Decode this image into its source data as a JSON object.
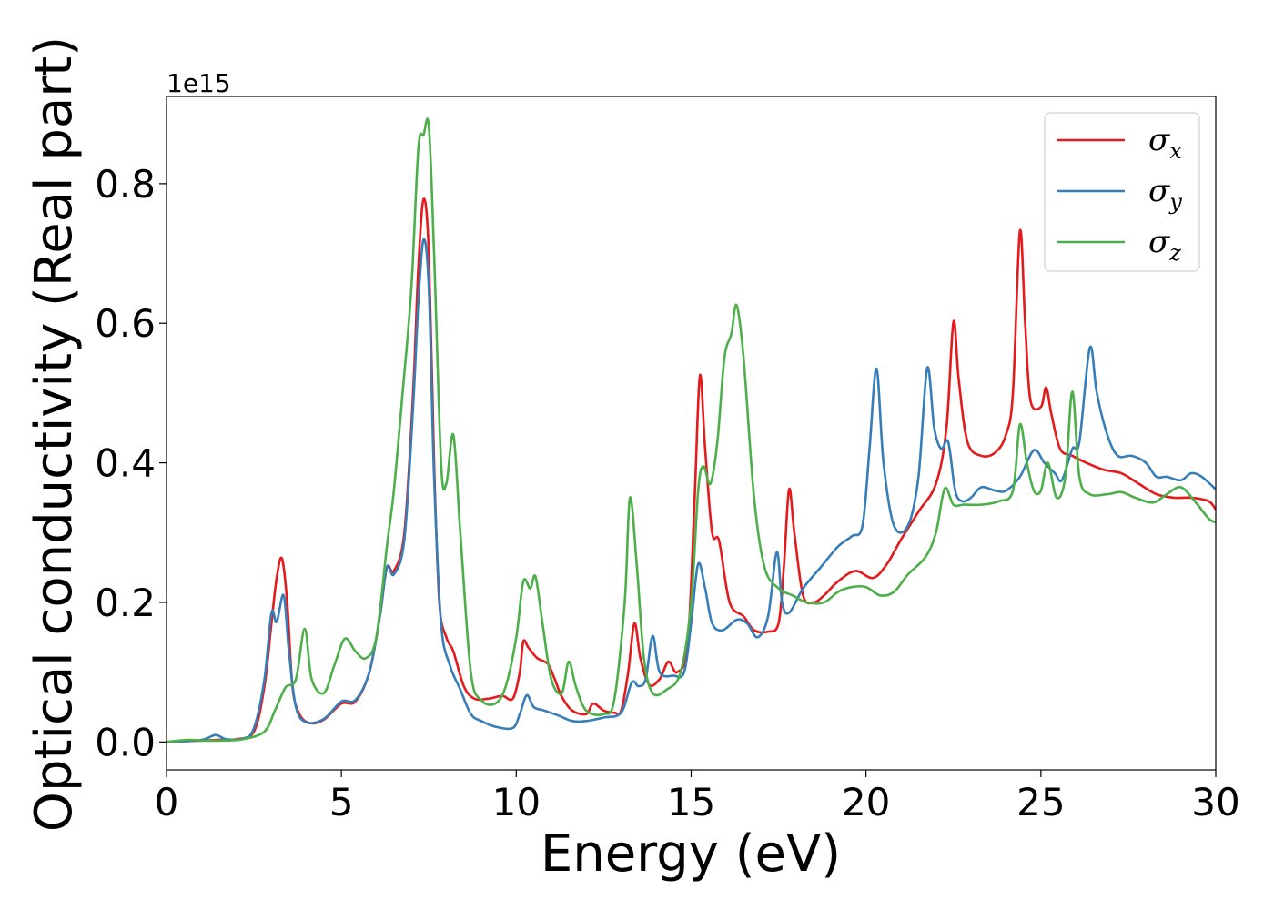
{
  "chart_data": {
    "type": "line",
    "title": "",
    "xlabel": "Energy (eV)",
    "ylabel": "Optical conductivity (Real part)",
    "y_offset_text": "1e15",
    "xlim": [
      0,
      30
    ],
    "ylim": [
      -0.04,
      0.925
    ],
    "xticks": [
      0,
      5,
      10,
      15,
      20,
      25,
      30
    ],
    "xtick_labels": [
      "0",
      "5",
      "10",
      "15",
      "20",
      "25",
      "30"
    ],
    "yticks": [
      0.0,
      0.2,
      0.4,
      0.6,
      0.8
    ],
    "ytick_labels": [
      "0.0",
      "0.2",
      "0.4",
      "0.6",
      "0.8"
    ],
    "grid": false,
    "legend_position": "top-right",
    "series": [
      {
        "name": "σx",
        "symbol": "σ",
        "subscript": "x",
        "color": "#e41a1c",
        "points": [
          [
            0,
            0
          ],
          [
            1,
            0.002
          ],
          [
            1.5,
            0.003
          ],
          [
            2,
            0.004
          ],
          [
            2.5,
            0.015
          ],
          [
            2.8,
            0.08
          ],
          [
            3.0,
            0.17
          ],
          [
            3.15,
            0.235
          ],
          [
            3.3,
            0.263
          ],
          [
            3.45,
            0.2
          ],
          [
            3.6,
            0.08
          ],
          [
            3.8,
            0.04
          ],
          [
            4.1,
            0.027
          ],
          [
            4.5,
            0.032
          ],
          [
            5.0,
            0.055
          ],
          [
            5.4,
            0.058
          ],
          [
            5.8,
            0.1
          ],
          [
            6.1,
            0.18
          ],
          [
            6.3,
            0.25
          ],
          [
            6.5,
            0.245
          ],
          [
            6.8,
            0.3
          ],
          [
            7.05,
            0.5
          ],
          [
            7.2,
            0.68
          ],
          [
            7.35,
            0.778
          ],
          [
            7.5,
            0.7
          ],
          [
            7.65,
            0.4
          ],
          [
            7.8,
            0.2
          ],
          [
            8.0,
            0.15
          ],
          [
            8.2,
            0.13
          ],
          [
            8.5,
            0.08
          ],
          [
            8.8,
            0.062
          ],
          [
            9.2,
            0.062
          ],
          [
            9.6,
            0.066
          ],
          [
            9.9,
            0.062
          ],
          [
            10.1,
            0.1
          ],
          [
            10.2,
            0.144
          ],
          [
            10.35,
            0.135
          ],
          [
            10.6,
            0.12
          ],
          [
            10.9,
            0.112
          ],
          [
            11.1,
            0.09
          ],
          [
            11.3,
            0.065
          ],
          [
            11.6,
            0.045
          ],
          [
            12.0,
            0.04
          ],
          [
            12.2,
            0.055
          ],
          [
            12.5,
            0.045
          ],
          [
            12.8,
            0.042
          ],
          [
            13.0,
            0.045
          ],
          [
            13.2,
            0.1
          ],
          [
            13.38,
            0.17
          ],
          [
            13.55,
            0.12
          ],
          [
            13.8,
            0.082
          ],
          [
            14.1,
            0.09
          ],
          [
            14.35,
            0.115
          ],
          [
            14.6,
            0.1
          ],
          [
            14.9,
            0.14
          ],
          [
            15.1,
            0.35
          ],
          [
            15.25,
            0.525
          ],
          [
            15.4,
            0.42
          ],
          [
            15.6,
            0.3
          ],
          [
            15.8,
            0.288
          ],
          [
            16.1,
            0.2
          ],
          [
            16.5,
            0.18
          ],
          [
            16.8,
            0.16
          ],
          [
            17.2,
            0.158
          ],
          [
            17.5,
            0.17
          ],
          [
            17.65,
            0.25
          ],
          [
            17.8,
            0.362
          ],
          [
            17.95,
            0.3
          ],
          [
            18.2,
            0.21
          ],
          [
            18.5,
            0.2
          ],
          [
            18.8,
            0.21
          ],
          [
            19.2,
            0.23
          ],
          [
            19.7,
            0.245
          ],
          [
            20.2,
            0.235
          ],
          [
            20.6,
            0.255
          ],
          [
            21.0,
            0.29
          ],
          [
            21.5,
            0.33
          ],
          [
            22.0,
            0.37
          ],
          [
            22.3,
            0.45
          ],
          [
            22.5,
            0.602
          ],
          [
            22.65,
            0.52
          ],
          [
            22.9,
            0.43
          ],
          [
            23.3,
            0.41
          ],
          [
            23.7,
            0.415
          ],
          [
            24.0,
            0.44
          ],
          [
            24.2,
            0.5
          ],
          [
            24.4,
            0.732
          ],
          [
            24.55,
            0.6
          ],
          [
            24.7,
            0.49
          ],
          [
            25.0,
            0.48
          ],
          [
            25.15,
            0.508
          ],
          [
            25.3,
            0.47
          ],
          [
            25.55,
            0.42
          ],
          [
            25.9,
            0.41
          ],
          [
            26.3,
            0.4
          ],
          [
            26.8,
            0.39
          ],
          [
            27.3,
            0.385
          ],
          [
            27.8,
            0.37
          ],
          [
            28.3,
            0.355
          ],
          [
            28.8,
            0.35
          ],
          [
            29.3,
            0.35
          ],
          [
            29.8,
            0.345
          ],
          [
            30,
            0.333
          ]
        ]
      },
      {
        "name": "σy",
        "symbol": "σ",
        "subscript": "y",
        "color": "#377eb8",
        "points": [
          [
            0,
            0
          ],
          [
            1.0,
            0.003
          ],
          [
            1.4,
            0.01
          ],
          [
            1.7,
            0.004
          ],
          [
            2.2,
            0.005
          ],
          [
            2.5,
            0.02
          ],
          [
            2.8,
            0.09
          ],
          [
            3.0,
            0.185
          ],
          [
            3.15,
            0.172
          ],
          [
            3.35,
            0.21
          ],
          [
            3.5,
            0.13
          ],
          [
            3.7,
            0.05
          ],
          [
            4.0,
            0.028
          ],
          [
            4.5,
            0.033
          ],
          [
            5.0,
            0.058
          ],
          [
            5.4,
            0.06
          ],
          [
            5.8,
            0.1
          ],
          [
            6.1,
            0.18
          ],
          [
            6.3,
            0.25
          ],
          [
            6.5,
            0.24
          ],
          [
            6.8,
            0.29
          ],
          [
            7.05,
            0.48
          ],
          [
            7.2,
            0.63
          ],
          [
            7.35,
            0.72
          ],
          [
            7.5,
            0.65
          ],
          [
            7.65,
            0.38
          ],
          [
            7.85,
            0.17
          ],
          [
            8.1,
            0.11
          ],
          [
            8.4,
            0.075
          ],
          [
            8.7,
            0.04
          ],
          [
            9.0,
            0.03
          ],
          [
            9.4,
            0.022
          ],
          [
            9.9,
            0.02
          ],
          [
            10.1,
            0.04
          ],
          [
            10.3,
            0.067
          ],
          [
            10.5,
            0.05
          ],
          [
            10.8,
            0.045
          ],
          [
            11.2,
            0.038
          ],
          [
            11.6,
            0.03
          ],
          [
            12.0,
            0.03
          ],
          [
            12.5,
            0.035
          ],
          [
            13.0,
            0.042
          ],
          [
            13.3,
            0.085
          ],
          [
            13.5,
            0.08
          ],
          [
            13.7,
            0.09
          ],
          [
            13.9,
            0.152
          ],
          [
            14.1,
            0.1
          ],
          [
            14.5,
            0.095
          ],
          [
            14.8,
            0.1
          ],
          [
            15.0,
            0.17
          ],
          [
            15.2,
            0.255
          ],
          [
            15.4,
            0.22
          ],
          [
            15.6,
            0.17
          ],
          [
            15.9,
            0.16
          ],
          [
            16.3,
            0.175
          ],
          [
            16.6,
            0.17
          ],
          [
            16.9,
            0.15
          ],
          [
            17.2,
            0.18
          ],
          [
            17.45,
            0.272
          ],
          [
            17.6,
            0.2
          ],
          [
            17.8,
            0.185
          ],
          [
            18.2,
            0.22
          ],
          [
            18.7,
            0.25
          ],
          [
            19.2,
            0.28
          ],
          [
            19.6,
            0.295
          ],
          [
            19.9,
            0.31
          ],
          [
            20.1,
            0.42
          ],
          [
            20.3,
            0.535
          ],
          [
            20.5,
            0.4
          ],
          [
            20.8,
            0.31
          ],
          [
            21.2,
            0.31
          ],
          [
            21.5,
            0.38
          ],
          [
            21.75,
            0.536
          ],
          [
            21.95,
            0.45
          ],
          [
            22.15,
            0.42
          ],
          [
            22.35,
            0.43
          ],
          [
            22.55,
            0.36
          ],
          [
            22.75,
            0.345
          ],
          [
            23.0,
            0.35
          ],
          [
            23.3,
            0.365
          ],
          [
            23.7,
            0.36
          ],
          [
            24.0,
            0.36
          ],
          [
            24.4,
            0.38
          ],
          [
            24.8,
            0.418
          ],
          [
            25.1,
            0.4
          ],
          [
            25.4,
            0.385
          ],
          [
            25.6,
            0.375
          ],
          [
            25.9,
            0.42
          ],
          [
            26.1,
            0.43
          ],
          [
            26.4,
            0.565
          ],
          [
            26.6,
            0.5
          ],
          [
            26.9,
            0.44
          ],
          [
            27.2,
            0.41
          ],
          [
            27.6,
            0.41
          ],
          [
            28.0,
            0.4
          ],
          [
            28.3,
            0.38
          ],
          [
            28.6,
            0.38
          ],
          [
            29.0,
            0.375
          ],
          [
            29.3,
            0.385
          ],
          [
            29.6,
            0.38
          ],
          [
            30,
            0.362
          ]
        ]
      },
      {
        "name": "σz",
        "symbol": "σ",
        "subscript": "z",
        "color": "#4daf4a",
        "points": [
          [
            0,
            0
          ],
          [
            0.6,
            0.003
          ],
          [
            1.0,
            0.002
          ],
          [
            1.6,
            0.002
          ],
          [
            2.2,
            0.004
          ],
          [
            2.8,
            0.015
          ],
          [
            3.1,
            0.045
          ],
          [
            3.4,
            0.078
          ],
          [
            3.7,
            0.09
          ],
          [
            3.95,
            0.162
          ],
          [
            4.15,
            0.09
          ],
          [
            4.5,
            0.07
          ],
          [
            4.8,
            0.11
          ],
          [
            5.1,
            0.148
          ],
          [
            5.4,
            0.13
          ],
          [
            5.7,
            0.12
          ],
          [
            6.0,
            0.15
          ],
          [
            6.3,
            0.28
          ],
          [
            6.5,
            0.36
          ],
          [
            6.75,
            0.5
          ],
          [
            7.0,
            0.65
          ],
          [
            7.2,
            0.85
          ],
          [
            7.35,
            0.87
          ],
          [
            7.5,
            0.882
          ],
          [
            7.65,
            0.7
          ],
          [
            7.85,
            0.4
          ],
          [
            8.0,
            0.37
          ],
          [
            8.2,
            0.44
          ],
          [
            8.4,
            0.3
          ],
          [
            8.7,
            0.1
          ],
          [
            9.0,
            0.06
          ],
          [
            9.4,
            0.055
          ],
          [
            9.7,
            0.08
          ],
          [
            10.0,
            0.15
          ],
          [
            10.2,
            0.23
          ],
          [
            10.4,
            0.22
          ],
          [
            10.55,
            0.237
          ],
          [
            10.75,
            0.17
          ],
          [
            11.0,
            0.09
          ],
          [
            11.3,
            0.07
          ],
          [
            11.5,
            0.115
          ],
          [
            11.7,
            0.08
          ],
          [
            12.0,
            0.045
          ],
          [
            12.5,
            0.04
          ],
          [
            12.8,
            0.06
          ],
          [
            13.1,
            0.2
          ],
          [
            13.25,
            0.35
          ],
          [
            13.45,
            0.25
          ],
          [
            13.65,
            0.12
          ],
          [
            13.9,
            0.07
          ],
          [
            14.3,
            0.075
          ],
          [
            14.7,
            0.1
          ],
          [
            15.0,
            0.2
          ],
          [
            15.2,
            0.36
          ],
          [
            15.35,
            0.395
          ],
          [
            15.55,
            0.37
          ],
          [
            15.75,
            0.43
          ],
          [
            15.95,
            0.55
          ],
          [
            16.15,
            0.585
          ],
          [
            16.3,
            0.626
          ],
          [
            16.5,
            0.55
          ],
          [
            16.8,
            0.35
          ],
          [
            17.1,
            0.25
          ],
          [
            17.5,
            0.22
          ],
          [
            17.9,
            0.21
          ],
          [
            18.3,
            0.2
          ],
          [
            18.8,
            0.2
          ],
          [
            19.2,
            0.215
          ],
          [
            19.6,
            0.222
          ],
          [
            20.0,
            0.222
          ],
          [
            20.4,
            0.21
          ],
          [
            20.8,
            0.215
          ],
          [
            21.2,
            0.24
          ],
          [
            21.7,
            0.265
          ],
          [
            22.0,
            0.3
          ],
          [
            22.25,
            0.363
          ],
          [
            22.5,
            0.34
          ],
          [
            22.8,
            0.34
          ],
          [
            23.3,
            0.34
          ],
          [
            23.8,
            0.345
          ],
          [
            24.2,
            0.36
          ],
          [
            24.4,
            0.455
          ],
          [
            24.6,
            0.4
          ],
          [
            24.8,
            0.36
          ],
          [
            25.0,
            0.36
          ],
          [
            25.2,
            0.4
          ],
          [
            25.45,
            0.35
          ],
          [
            25.7,
            0.38
          ],
          [
            25.9,
            0.502
          ],
          [
            26.1,
            0.38
          ],
          [
            26.4,
            0.355
          ],
          [
            26.9,
            0.355
          ],
          [
            27.3,
            0.358
          ],
          [
            27.7,
            0.35
          ],
          [
            28.2,
            0.343
          ],
          [
            28.6,
            0.355
          ],
          [
            29.0,
            0.365
          ],
          [
            29.4,
            0.345
          ],
          [
            29.8,
            0.32
          ],
          [
            30,
            0.315
          ]
        ]
      }
    ]
  }
}
